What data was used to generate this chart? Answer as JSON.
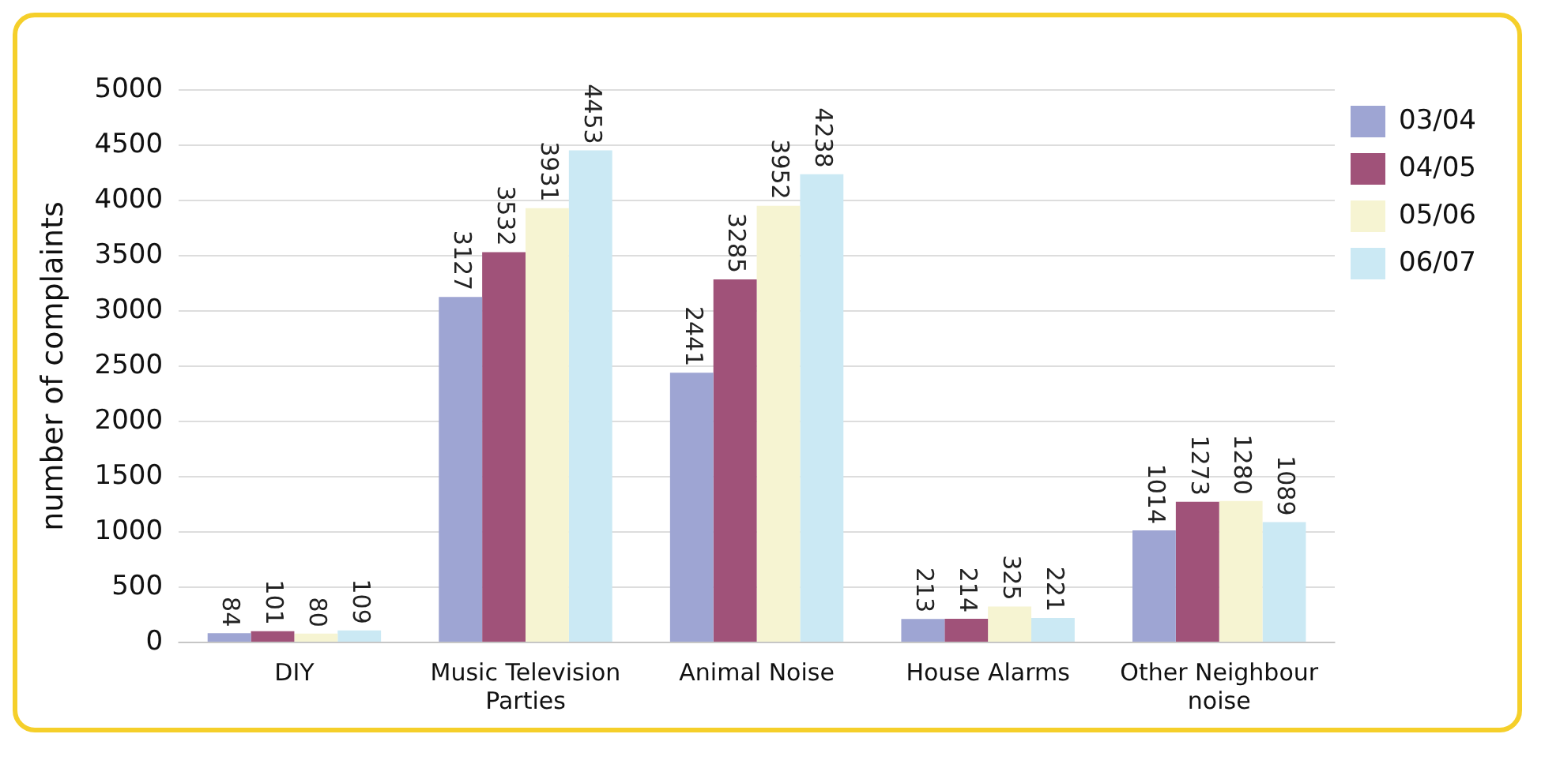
{
  "chart_data": {
    "type": "bar",
    "ylabel": "number of complaints",
    "categories": [
      "DIY",
      "Music Television Parties",
      "Animal Noise",
      "House Alarms",
      "Other Neighbour noise"
    ],
    "series": [
      {
        "name": "03/04",
        "color": "#9ea5d3",
        "values": [
          84,
          3127,
          2441,
          213,
          1014
        ]
      },
      {
        "name": "04/05",
        "color": "#a05279",
        "values": [
          101,
          3532,
          3285,
          214,
          1273
        ]
      },
      {
        "name": "05/06",
        "color": "#f6f4d2",
        "values": [
          80,
          3931,
          3952,
          325,
          1280
        ]
      },
      {
        "name": "06/07",
        "color": "#cbe9f4",
        "values": [
          109,
          4453,
          4238,
          221,
          1089
        ]
      }
    ],
    "ylim": [
      0,
      5000
    ],
    "yticks": [
      0,
      500,
      1000,
      1500,
      2000,
      2500,
      3000,
      3500,
      4000,
      4500,
      5000
    ],
    "grid": "y",
    "legend": "right",
    "data_labels": true
  }
}
